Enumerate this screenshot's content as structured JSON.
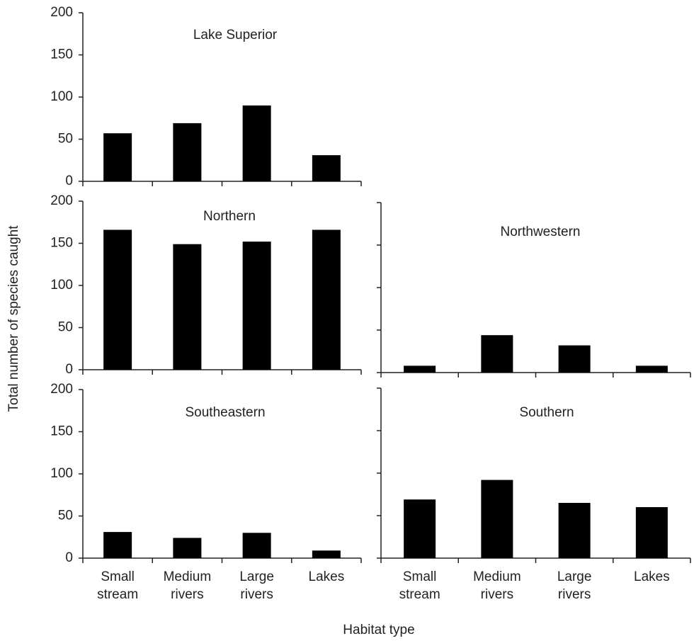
{
  "ylabel": "Total number of species caught",
  "xlabel": "Habitat type",
  "chart_data": [
    {
      "type": "bar",
      "title": "Lake Superior",
      "values": [
        57,
        69,
        90,
        31
      ],
      "color": "#000000",
      "ylim": [
        0,
        200
      ],
      "yticks": [
        0,
        50,
        100,
        150,
        200
      ],
      "show_ytick_labels": true
    },
    {
      "type": "bar",
      "title": "Northern",
      "values": [
        166,
        149,
        152,
        166
      ],
      "color": "#000000",
      "ylim": [
        0,
        200
      ],
      "yticks": [
        0,
        50,
        100,
        150,
        200
      ],
      "show_ytick_labels": true
    },
    {
      "type": "bar",
      "title": "Northwestern",
      "values": [
        8,
        44,
        32,
        8
      ],
      "color": "#000000",
      "ylim": [
        0,
        200
      ],
      "yticks": [
        0,
        50,
        100,
        150,
        200
      ],
      "show_ytick_labels": false
    },
    {
      "type": "bar",
      "title": "Southeastern",
      "categories": [
        "Small stream",
        "Medium rivers",
        "Large rivers",
        "Lakes"
      ],
      "values": [
        31,
        24,
        30,
        9
      ],
      "color": "#000000",
      "ylim": [
        0,
        200
      ],
      "yticks": [
        0,
        50,
        100,
        150,
        200
      ],
      "show_ytick_labels": true
    },
    {
      "type": "bar",
      "title": "Southern",
      "categories": [
        "Small stream",
        "Medium rivers",
        "Large rivers",
        "Lakes"
      ],
      "values": [
        69,
        92,
        65,
        60
      ],
      "color": "#000000",
      "ylim": [
        0,
        200
      ],
      "yticks": [
        0,
        50,
        100,
        150,
        200
      ],
      "show_ytick_labels": false
    }
  ]
}
